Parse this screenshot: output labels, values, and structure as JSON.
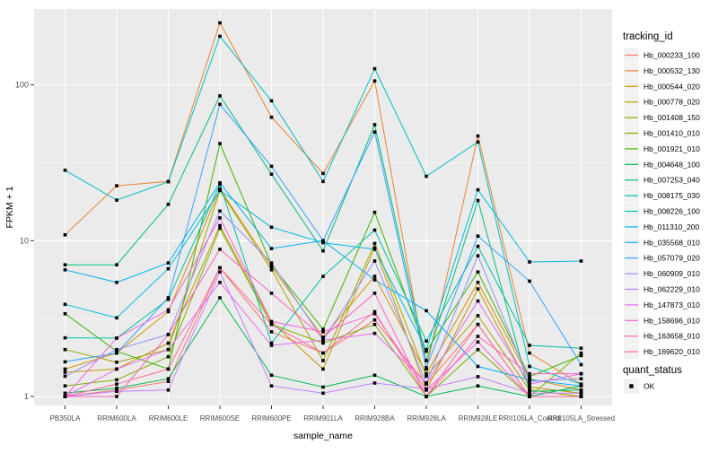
{
  "chart_data": {
    "type": "line",
    "title": "",
    "xlabel": "sample_name",
    "ylabel": "FPKM + 1",
    "y_scale": "log10",
    "y_ticks": [
      1,
      10,
      100
    ],
    "y_minor_ticks": [
      3.1623,
      31.623
    ],
    "ylim": [
      0.88,
      307
    ],
    "grid": "on",
    "panel_color": "#EBEBEB",
    "gridline_color": "#FFFFFF",
    "tick_label_color": "#4D4D4D",
    "point_style": "black-square",
    "legend_position": "right",
    "categories": [
      "PB350LA",
      "RRIM600LA",
      "RRIM600LE",
      "RRIM600SE",
      "RRIM600PE",
      "RRIM901LA",
      "RRIM928BA",
      "RRIM928LA",
      "RRIM928LE",
      "RRII105LA_Control",
      "RRII105LA_Stressed"
    ],
    "series": [
      {
        "name": "Hb_000233_100",
        "color": "#F8766D",
        "values": [
          1.0,
          1.1,
          1.25,
          6.7,
          2.6,
          1.9,
          3.1,
          1.2,
          2.9,
          1.0,
          1.0
        ]
      },
      {
        "name": "Hb_000532_130",
        "color": "#EA8331",
        "values": [
          10.9,
          22.5,
          24.0,
          250,
          62,
          27.0,
          106,
          1.5,
          47,
          1.9,
          1.2
        ]
      },
      {
        "name": "Hb_000544_020",
        "color": "#D89000",
        "values": [
          1.5,
          1.9,
          3.5,
          21.5,
          6.8,
          2.4,
          5.9,
          1.4,
          5.4,
          1.3,
          1.1
        ]
      },
      {
        "name": "Hb_000778_020",
        "color": "#C09B00",
        "values": [
          1.43,
          1.5,
          2.2,
          12.5,
          3.0,
          1.5,
          9.0,
          1.1,
          4.9,
          1.15,
          1.05
        ]
      },
      {
        "name": "Hb_001408_150",
        "color": "#A3A500",
        "values": [
          2.0,
          1.66,
          2.0,
          21.0,
          6.5,
          1.7,
          9.6,
          1.35,
          3.3,
          1.1,
          1.0
        ]
      },
      {
        "name": "Hb_001410_010",
        "color": "#7CAE00",
        "values": [
          1.17,
          1.28,
          1.8,
          12.0,
          2.9,
          2.2,
          2.9,
          1.0,
          2.0,
          1.0,
          1.9
        ]
      },
      {
        "name": "Hb_001921_010",
        "color": "#39B600",
        "values": [
          3.4,
          1.95,
          1.5,
          42.0,
          7.0,
          2.7,
          15.2,
          1.95,
          6.3,
          1.34,
          1.83
        ]
      },
      {
        "name": "Hb_004648_100",
        "color": "#00BB4E",
        "values": [
          1.05,
          1.13,
          1.3,
          4.3,
          1.37,
          1.15,
          1.37,
          1.0,
          1.17,
          1.0,
          1.17
        ]
      },
      {
        "name": "Hb_007253_040",
        "color": "#00BF7D",
        "values": [
          7.0,
          7.0,
          17.1,
          85.0,
          26.7,
          8.6,
          55.5,
          1.7,
          18.1,
          1.08,
          1.1
        ]
      },
      {
        "name": "Hb_008175_030",
        "color": "#00C1A3",
        "values": [
          2.38,
          2.37,
          4.2,
          23.0,
          2.2,
          5.9,
          11.7,
          2.27,
          9.2,
          2.13,
          2.04
        ]
      },
      {
        "name": "Hb_008226_100",
        "color": "#00BFC4",
        "values": [
          28.3,
          18.2,
          23.9,
          205,
          79,
          24.0,
          127,
          25.9,
          43,
          1.56,
          1.2
        ]
      },
      {
        "name": "Hb_011310_200",
        "color": "#00BAE0",
        "values": [
          3.9,
          3.2,
          6.6,
          21.0,
          12.2,
          9.7,
          8.8,
          2.0,
          21.2,
          7.3,
          7.4
        ]
      },
      {
        "name": "Hb_035568_010",
        "color": "#00B0F6",
        "values": [
          6.5,
          5.4,
          7.2,
          23.5,
          8.9,
          10.0,
          5.6,
          3.55,
          1.56,
          1.28,
          1.17
        ]
      },
      {
        "name": "Hb_057079_020",
        "color": "#35A2FF",
        "values": [
          1.67,
          1.9,
          4.3,
          75.0,
          30.0,
          10.0,
          49.8,
          1.53,
          10.7,
          5.5,
          1.6
        ]
      },
      {
        "name": "Hb_060909_010",
        "color": "#9590FF",
        "values": [
          1.35,
          2.0,
          2.5,
          15.5,
          7.2,
          2.3,
          7.4,
          1.22,
          8.0,
          1.25,
          1.3
        ]
      },
      {
        "name": "Hb_062229_010",
        "color": "#C77CFF",
        "values": [
          1.0,
          1.08,
          1.1,
          6.3,
          1.17,
          1.05,
          1.22,
          1.12,
          1.34,
          1.05,
          1.05
        ]
      },
      {
        "name": "Hb_147873_010",
        "color": "#E76BF3",
        "values": [
          1.0,
          1.5,
          2.0,
          5.4,
          2.13,
          2.3,
          2.54,
          1.22,
          4.1,
          1.2,
          1.4
        ]
      },
      {
        "name": "Hb_158696_010",
        "color": "#FA62DB",
        "values": [
          1.0,
          2.37,
          3.6,
          14.0,
          3.03,
          2.6,
          3.4,
          1.1,
          2.24,
          1.0,
          1.0
        ]
      },
      {
        "name": "Hb_163658_010",
        "color": "#FF62BC",
        "values": [
          1.0,
          1.0,
          2.5,
          8.8,
          4.6,
          2.4,
          4.6,
          1.0,
          2.43,
          1.4,
          1.4
        ]
      },
      {
        "name": "Hb_169620_010",
        "color": "#FF6A98",
        "values": [
          1.0,
          1.2,
          1.5,
          6.7,
          2.9,
          1.9,
          3.5,
          1.0,
          2.9,
          1.0,
          1.0
        ]
      }
    ],
    "legend": {
      "color_title": "tracking_id",
      "shape_title": "quant_status",
      "shape_entries": [
        {
          "label": "OK",
          "shape": "square",
          "color": "#000000"
        }
      ]
    }
  }
}
